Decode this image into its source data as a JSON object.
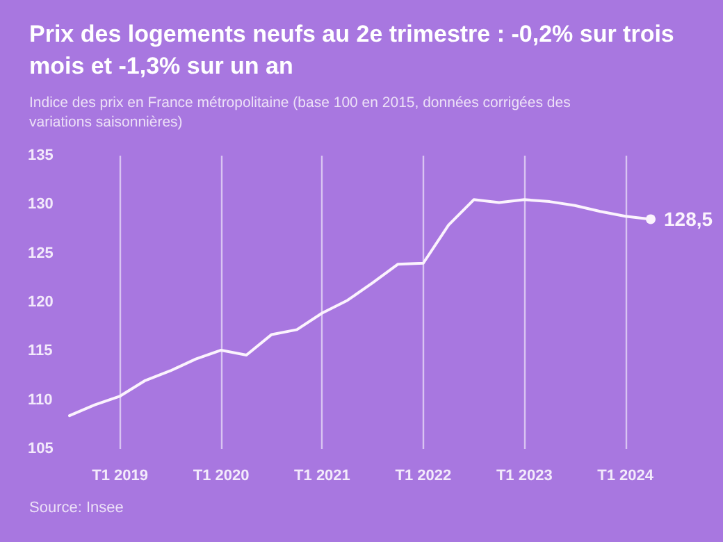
{
  "chart_data": {
    "type": "line",
    "title": "Prix des logements neufs au 2e trimestre : -0,2% sur trois mois et -1,3% sur un an",
    "subtitle": "Indice des prix en France métropolitaine (base 100 en 2015, données corrigées des variations saisonnières)",
    "annotations": [
      "Source: Insee"
    ],
    "categories": [
      null,
      null,
      "T1 2019",
      null,
      null,
      null,
      "T1 2020",
      null,
      null,
      null,
      "T1 2021",
      null,
      null,
      null,
      "T1 2022",
      null,
      null,
      null,
      "T1 2023",
      null,
      null,
      null,
      "T1 2024",
      null
    ],
    "series": [
      {
        "color": "#fbf3fd",
        "values": [
          108.4,
          109.5,
          110.4,
          112.0,
          113.0,
          114.2,
          115.1,
          114.6,
          116.7,
          117.2,
          118.9,
          120.2,
          122.0,
          123.9,
          124.0,
          127.9,
          130.5,
          130.2,
          130.5,
          130.3,
          129.9,
          129.3,
          128.8,
          128.5
        ],
        "value_labels": [
          null,
          null,
          null,
          null,
          null,
          null,
          null,
          null,
          null,
          null,
          null,
          null,
          null,
          null,
          null,
          null,
          null,
          null,
          null,
          null,
          null,
          null,
          null,
          "128,5"
        ]
      }
    ],
    "ylim": [
      105,
      135
    ],
    "yticks": [
      105,
      110,
      115,
      120,
      125,
      130,
      135
    ],
    "grid": "x",
    "line_style": "solid"
  }
}
